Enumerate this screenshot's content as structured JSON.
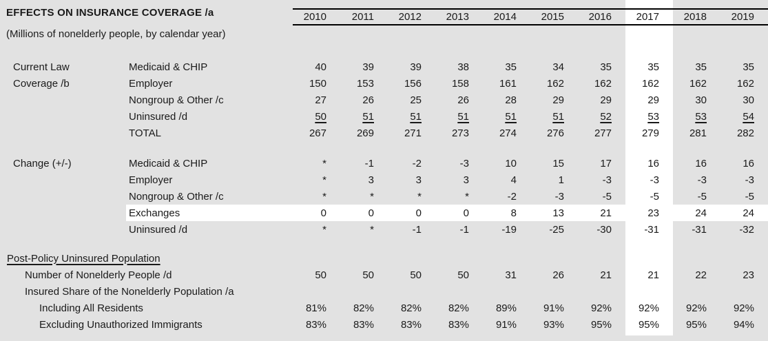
{
  "title": "EFFECTS ON INSURANCE COVERAGE /a",
  "subtitle": "(Millions of nonelderly people, by calendar year)",
  "years": [
    "2010",
    "2011",
    "2012",
    "2013",
    "2014",
    "2015",
    "2016",
    "2017",
    "2018",
    "2019"
  ],
  "highlighted_year": "2017",
  "highlighted_row": "Exchanges",
  "sections": [
    {
      "group_labels": [
        "Current Law",
        "Coverage /b"
      ],
      "rows": [
        {
          "label": "Medicaid & CHIP",
          "values": [
            "40",
            "39",
            "39",
            "38",
            "35",
            "34",
            "35",
            "35",
            "35",
            "35"
          ]
        },
        {
          "label": "Employer",
          "values": [
            "150",
            "153",
            "156",
            "158",
            "161",
            "162",
            "162",
            "162",
            "162",
            "162"
          ]
        },
        {
          "label": "Nongroup & Other /c",
          "values": [
            "27",
            "26",
            "25",
            "26",
            "28",
            "29",
            "29",
            "29",
            "30",
            "30"
          ]
        },
        {
          "label": "Uninsured /d",
          "underline_values": true,
          "values": [
            "50",
            "51",
            "51",
            "51",
            "51",
            "51",
            "52",
            "53",
            "53",
            "54"
          ]
        },
        {
          "label": "TOTAL",
          "values": [
            "267",
            "269",
            "271",
            "273",
            "274",
            "276",
            "277",
            "279",
            "281",
            "282"
          ]
        }
      ]
    },
    {
      "group_labels": [
        "Change (+/-)"
      ],
      "rows": [
        {
          "label": "Medicaid & CHIP",
          "values": [
            "*",
            "-1",
            "-2",
            "-3",
            "10",
            "15",
            "17",
            "16",
            "16",
            "16"
          ]
        },
        {
          "label": "Employer",
          "values": [
            "*",
            "3",
            "3",
            "3",
            "4",
            "1",
            "-3",
            "-3",
            "-3",
            "-3"
          ]
        },
        {
          "label": "Nongroup & Other /c",
          "values": [
            "*",
            "*",
            "*",
            "*",
            "-2",
            "-3",
            "-5",
            "-5",
            "-5",
            "-5"
          ]
        },
        {
          "label": "Exchanges",
          "highlighted": true,
          "values": [
            "0",
            "0",
            "0",
            "0",
            "8",
            "13",
            "21",
            "23",
            "24",
            "24"
          ]
        },
        {
          "label": "Uninsured /d",
          "values": [
            "*",
            "*",
            "-1",
            "-1",
            "-19",
            "-25",
            "-30",
            "-31",
            "-31",
            "-32"
          ]
        }
      ]
    }
  ],
  "footer": {
    "heading": "Post-Policy Uninsured Population",
    "rows": [
      {
        "label": "Number of Nonelderly People /d",
        "indent": 1,
        "values": [
          "50",
          "50",
          "50",
          "50",
          "31",
          "26",
          "21",
          "21",
          "22",
          "23"
        ]
      },
      {
        "label": "Insured Share of the Nonelderly Population /a",
        "indent": 1,
        "values": []
      },
      {
        "label": "Including All Residents",
        "indent": 2,
        "values": [
          "81%",
          "82%",
          "82%",
          "82%",
          "89%",
          "91%",
          "92%",
          "92%",
          "92%",
          "92%"
        ]
      },
      {
        "label": "Excluding Unauthorized Immigrants",
        "indent": 2,
        "values": [
          "83%",
          "83%",
          "83%",
          "83%",
          "91%",
          "93%",
          "95%",
          "95%",
          "95%",
          "94%"
        ]
      }
    ]
  },
  "colors": {
    "background": "#e2e2e2",
    "highlight_band": "#ffffff",
    "text": "#1a1a1a",
    "rule": "#000000"
  }
}
